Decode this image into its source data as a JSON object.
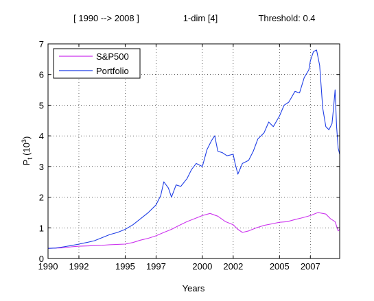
{
  "chart_data": {
    "type": "line",
    "title_parts": [
      "[ 1990 --> 2008 ]",
      "1-dim [4]",
      "Threshold: 0.4"
    ],
    "xlabel": "Years",
    "ylabel_main": "P",
    "ylabel_sub": "t",
    "ylabel_paren_open": "(10",
    "ylabel_exp": "3",
    "ylabel_paren_close": ")",
    "xlim": [
      1990,
      2008.9
    ],
    "ylim": [
      0,
      7
    ],
    "x_ticks": [
      {
        "value": 1990,
        "label": "1990"
      },
      {
        "value": 1992,
        "label": "1992"
      },
      {
        "value": 1995,
        "label": "1995"
      },
      {
        "value": 1997,
        "label": "1997"
      },
      {
        "value": 2000,
        "label": "2000"
      },
      {
        "value": 2002,
        "label": "2002"
      },
      {
        "value": 2005,
        "label": "2005"
      },
      {
        "value": 2007,
        "label": "2007"
      }
    ],
    "y_ticks": [
      {
        "value": 0,
        "label": "0"
      },
      {
        "value": 1,
        "label": "1"
      },
      {
        "value": 2,
        "label": "2"
      },
      {
        "value": 3,
        "label": "3"
      },
      {
        "value": 4,
        "label": "4"
      },
      {
        "value": 5,
        "label": "5"
      },
      {
        "value": 6,
        "label": "6"
      },
      {
        "value": 7,
        "label": "7"
      }
    ],
    "grid": true,
    "legend_position": "top-left",
    "series": [
      {
        "name": "S&P500",
        "color": "#cc33ee",
        "x": [
          1990.0,
          1990.5,
          1991.0,
          1991.5,
          1992.0,
          1992.5,
          1993.0,
          1993.5,
          1994.0,
          1994.5,
          1995.0,
          1995.5,
          1996.0,
          1996.5,
          1997.0,
          1997.5,
          1998.0,
          1998.5,
          1999.0,
          1999.5,
          2000.0,
          2000.5,
          2001.0,
          2001.5,
          2002.0,
          2002.3,
          2002.6,
          2003.0,
          2003.5,
          2004.0,
          2004.5,
          2005.0,
          2005.5,
          2006.0,
          2006.5,
          2007.0,
          2007.5,
          2008.0,
          2008.3,
          2008.6,
          2008.8,
          2008.9
        ],
        "y": [
          0.33,
          0.34,
          0.35,
          0.38,
          0.4,
          0.41,
          0.42,
          0.43,
          0.45,
          0.46,
          0.47,
          0.52,
          0.6,
          0.66,
          0.74,
          0.85,
          0.95,
          1.08,
          1.2,
          1.3,
          1.4,
          1.47,
          1.38,
          1.2,
          1.1,
          0.95,
          0.85,
          0.9,
          1.0,
          1.08,
          1.13,
          1.18,
          1.2,
          1.27,
          1.33,
          1.4,
          1.5,
          1.45,
          1.3,
          1.2,
          0.9,
          0.95
        ]
      },
      {
        "name": "Portfolio",
        "color": "#1f3ee6",
        "x": [
          1990.0,
          1990.5,
          1991.0,
          1991.5,
          1992.0,
          1992.5,
          1993.0,
          1993.5,
          1994.0,
          1994.5,
          1995.0,
          1995.5,
          1996.0,
          1996.5,
          1997.0,
          1997.3,
          1997.5,
          1997.8,
          1998.0,
          1998.3,
          1998.6,
          1999.0,
          1999.3,
          1999.6,
          2000.0,
          2000.3,
          2000.6,
          2000.8,
          2001.0,
          2001.3,
          2001.6,
          2002.0,
          2002.1,
          2002.3,
          2002.6,
          2003.0,
          2003.3,
          2003.6,
          2004.0,
          2004.3,
          2004.6,
          2005.0,
          2005.3,
          2005.6,
          2006.0,
          2006.3,
          2006.6,
          2006.9,
          2007.0,
          2007.2,
          2007.4,
          2007.6,
          2007.8,
          2008.0,
          2008.2,
          2008.4,
          2008.5,
          2008.6,
          2008.7,
          2008.8,
          2008.9
        ],
        "y": [
          0.33,
          0.34,
          0.38,
          0.42,
          0.47,
          0.52,
          0.58,
          0.68,
          0.78,
          0.85,
          0.95,
          1.1,
          1.3,
          1.5,
          1.75,
          2.05,
          2.5,
          2.3,
          2.0,
          2.4,
          2.35,
          2.6,
          2.9,
          3.1,
          3.0,
          3.55,
          3.85,
          4.0,
          3.5,
          3.45,
          3.35,
          3.4,
          3.15,
          2.75,
          3.1,
          3.2,
          3.5,
          3.9,
          4.1,
          4.45,
          4.3,
          4.65,
          5.0,
          5.1,
          5.45,
          5.4,
          5.9,
          6.15,
          6.45,
          6.75,
          6.8,
          6.3,
          4.9,
          4.3,
          4.2,
          4.4,
          4.9,
          5.5,
          4.3,
          3.6,
          3.4
        ]
      }
    ]
  }
}
